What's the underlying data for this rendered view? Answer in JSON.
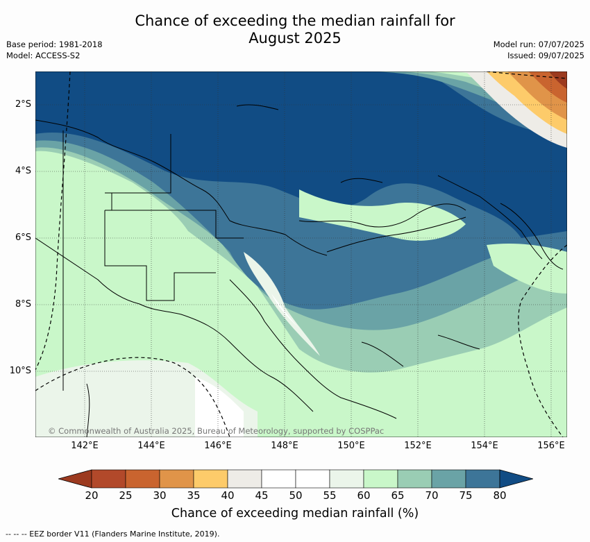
{
  "title": {
    "line1": "Chance of exceeding the median rainfall for",
    "line2": "August 2025"
  },
  "meta": {
    "base_period": "Base period: 1981-2018",
    "model": "Model: ACCESS-S2",
    "model_run": "Model run: 07/07/2025",
    "issued": "Issued: 09/07/2025"
  },
  "map": {
    "lat_labels": [
      "2°S",
      "4°S",
      "6°S",
      "8°S",
      "10°S"
    ],
    "lon_labels": [
      "142°E",
      "144°E",
      "146°E",
      "148°E",
      "150°E",
      "152°E",
      "154°E",
      "156°E"
    ],
    "copyright": "© Commonwealth of Australia 2025, Bureau of Meteorology, supported by COSPPac"
  },
  "colorbar": {
    "ticks": [
      "20",
      "25",
      "30",
      "35",
      "40",
      "45",
      "50",
      "55",
      "60",
      "65",
      "70",
      "75",
      "80"
    ],
    "colors": [
      "#9c3a1f",
      "#b2492a",
      "#c9642f",
      "#e09449",
      "#fdcb6a",
      "#eeece7",
      "#ffffff",
      "#ffffff",
      "#ebf5ea",
      "#c9f7c9",
      "#9acdb4",
      "#6aa3a6",
      "#3d7598",
      "#114c84"
    ],
    "title": "Chance of exceeding median rainfall (%)"
  },
  "footer": "--  --  -- EEZ border V11 (Flanders Marine Institute, 2019)."
}
